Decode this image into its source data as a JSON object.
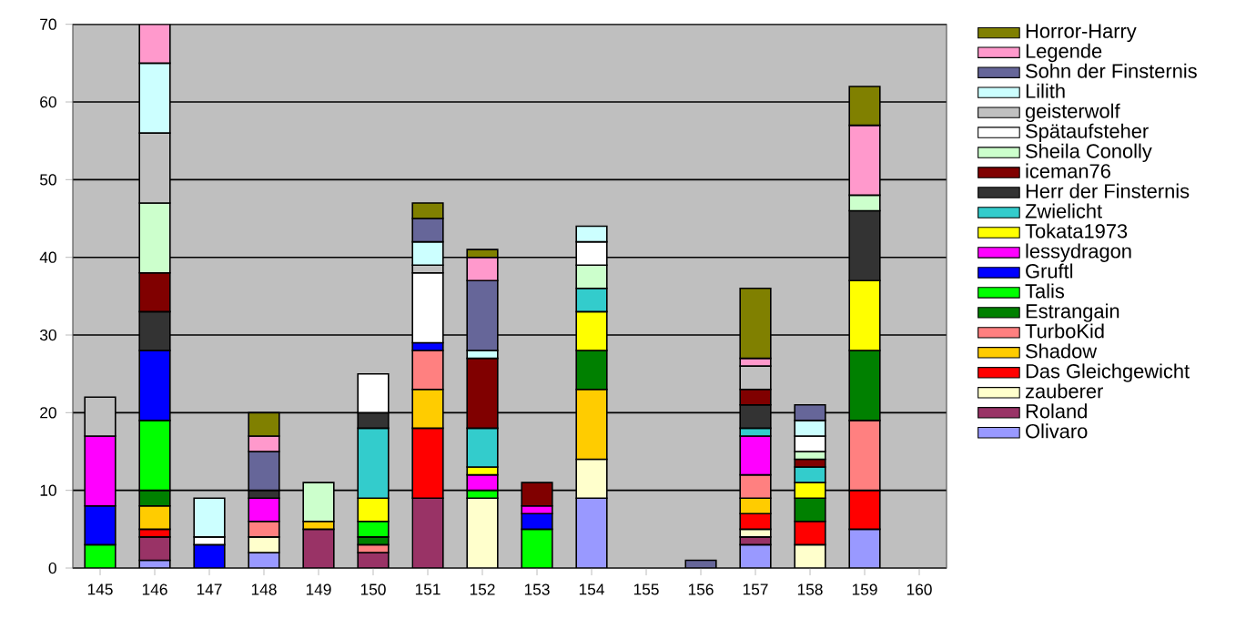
{
  "chart_data": {
    "type": "bar",
    "stacked": true,
    "categories": [
      "145",
      "146",
      "147",
      "148",
      "149",
      "150",
      "151",
      "152",
      "153",
      "154",
      "155",
      "156",
      "157",
      "158",
      "159",
      "160"
    ],
    "ylim": [
      0,
      70
    ],
    "yticks": [
      0,
      10,
      20,
      30,
      40,
      50,
      60,
      70
    ],
    "grid": "y",
    "legend": "right",
    "series": [
      {
        "name": "Olivaro",
        "color": "#9999ff",
        "values": [
          null,
          1,
          null,
          2,
          null,
          null,
          null,
          null,
          null,
          9,
          null,
          null,
          3,
          null,
          5,
          null
        ]
      },
      {
        "name": "Roland",
        "color": "#993366",
        "values": [
          null,
          3,
          null,
          null,
          5,
          2,
          9,
          null,
          null,
          null,
          null,
          null,
          1,
          null,
          null,
          null
        ]
      },
      {
        "name": "zauberer",
        "color": "#ffffcc",
        "values": [
          null,
          null,
          null,
          2,
          null,
          null,
          null,
          9,
          null,
          5,
          null,
          null,
          1,
          3,
          null,
          null
        ]
      },
      {
        "name": "Das Gleichgewicht",
        "color": "#ff0000",
        "values": [
          null,
          1,
          null,
          null,
          null,
          null,
          9,
          null,
          null,
          null,
          null,
          null,
          2,
          3,
          5,
          null
        ]
      },
      {
        "name": "Shadow",
        "color": "#ffcc00",
        "values": [
          null,
          3,
          null,
          null,
          1,
          null,
          5,
          null,
          null,
          9,
          null,
          null,
          2,
          null,
          null,
          null
        ]
      },
      {
        "name": "TurboKid",
        "color": "#ff8080",
        "values": [
          null,
          null,
          null,
          2,
          null,
          1,
          5,
          null,
          null,
          null,
          null,
          null,
          3,
          null,
          9,
          null
        ]
      },
      {
        "name": "Estrangain",
        "color": "#008000",
        "values": [
          null,
          2,
          null,
          null,
          null,
          1,
          null,
          null,
          null,
          5,
          null,
          null,
          null,
          3,
          9,
          null
        ]
      },
      {
        "name": "Talis",
        "color": "#00ff00",
        "values": [
          3,
          9,
          null,
          null,
          null,
          2,
          null,
          1,
          5,
          null,
          null,
          null,
          null,
          null,
          null,
          null
        ]
      },
      {
        "name": "Gruftl",
        "color": "#0000ff",
        "values": [
          5,
          9,
          3,
          null,
          null,
          null,
          1,
          null,
          2,
          null,
          null,
          null,
          null,
          null,
          null,
          null
        ]
      },
      {
        "name": "lessydragon",
        "color": "#ff00ff",
        "values": [
          9,
          null,
          null,
          3,
          null,
          null,
          null,
          2,
          1,
          null,
          null,
          null,
          5,
          null,
          null,
          null
        ]
      },
      {
        "name": "Tokata1973",
        "color": "#ffff00",
        "values": [
          null,
          null,
          null,
          null,
          null,
          3,
          null,
          1,
          null,
          5,
          null,
          null,
          null,
          2,
          9,
          null
        ]
      },
      {
        "name": "Zwielicht",
        "color": "#33cccc",
        "values": [
          null,
          null,
          null,
          null,
          null,
          9,
          null,
          5,
          null,
          3,
          null,
          null,
          1,
          2,
          null,
          null
        ]
      },
      {
        "name": "Herr der Finsternis",
        "color": "#333333",
        "values": [
          null,
          5,
          null,
          1,
          null,
          2,
          null,
          null,
          null,
          null,
          null,
          null,
          3,
          null,
          9,
          null
        ]
      },
      {
        "name": "iceman76",
        "color": "#800000",
        "values": [
          null,
          5,
          null,
          null,
          null,
          null,
          null,
          9,
          3,
          null,
          null,
          null,
          2,
          1,
          null,
          null
        ]
      },
      {
        "name": "Sheila Conolly",
        "color": "#ccffcc",
        "values": [
          null,
          9,
          null,
          null,
          5,
          null,
          null,
          null,
          null,
          3,
          null,
          null,
          null,
          1,
          2,
          null
        ]
      },
      {
        "name": "Spätaufsteher",
        "color": "#ffffff",
        "values": [
          null,
          null,
          1,
          null,
          null,
          5,
          9,
          null,
          null,
          3,
          null,
          null,
          null,
          2,
          null,
          null
        ]
      },
      {
        "name": "geisterwolf",
        "color": "#c0c0c0",
        "values": [
          5,
          9,
          null,
          null,
          null,
          null,
          1,
          null,
          null,
          null,
          null,
          null,
          3,
          null,
          null,
          null
        ]
      },
      {
        "name": "Lilith",
        "color": "#ccffff",
        "values": [
          null,
          9,
          5,
          null,
          null,
          null,
          3,
          1,
          null,
          2,
          null,
          null,
          null,
          2,
          null,
          null
        ]
      },
      {
        "name": "Sohn der Finsternis",
        "color": "#666699",
        "values": [
          null,
          null,
          null,
          5,
          null,
          null,
          3,
          9,
          null,
          null,
          null,
          1,
          null,
          2,
          null,
          null
        ]
      },
      {
        "name": "Legende",
        "color": "#ff99cc",
        "values": [
          null,
          5,
          null,
          2,
          null,
          null,
          null,
          3,
          null,
          null,
          null,
          null,
          1,
          null,
          9,
          null
        ]
      },
      {
        "name": "Horror-Harry",
        "color": "#808000",
        "values": [
          null,
          null,
          null,
          3,
          null,
          null,
          2,
          1,
          null,
          null,
          null,
          null,
          9,
          null,
          5,
          null
        ]
      }
    ]
  }
}
